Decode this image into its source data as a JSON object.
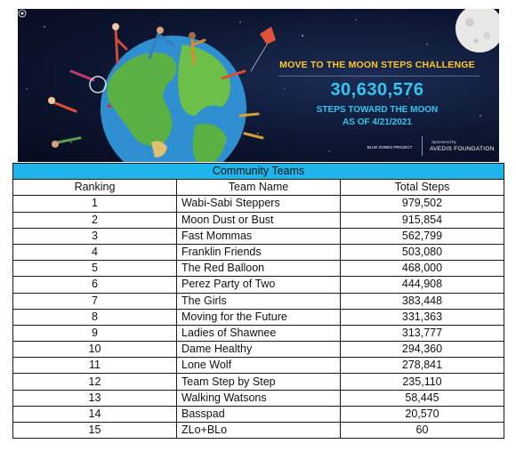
{
  "banner": {
    "challenge_title": "MOVE TO THE MOON STEPS CHALLENGE",
    "total_steps": "30,630,576",
    "subtitle_line1": "STEPS TOWARD THE MOON",
    "subtitle_line2": "AS OF 4/21/2021",
    "logo_left": "BLUE ZONES PROJECT",
    "sponsored_by": "Sponsored by",
    "logo_right": "AVEDIS FOUNDATION"
  },
  "table": {
    "caption": "Community Teams",
    "headers": {
      "ranking": "Ranking",
      "team_name": "Team Name",
      "total_steps": "Total Steps"
    },
    "rows": [
      {
        "rank": "1",
        "team": "Wabi-Sabi Steppers",
        "steps": "979,502"
      },
      {
        "rank": "2",
        "team": "Moon Dust or Bust",
        "steps": "915,854"
      },
      {
        "rank": "3",
        "team": "Fast Mommas",
        "steps": "562,799"
      },
      {
        "rank": "4",
        "team": "Franklin Friends",
        "steps": "503,080"
      },
      {
        "rank": "5",
        "team": "The Red Balloon",
        "steps": "468,000"
      },
      {
        "rank": "6",
        "team": "Perez Party of Two",
        "steps": "444,908"
      },
      {
        "rank": "7",
        "team": "The Girls",
        "steps": "383,448"
      },
      {
        "rank": "8",
        "team": "Moving for the Future",
        "steps": "331,363"
      },
      {
        "rank": "9",
        "team": "Ladies of Shawnee",
        "steps": "313,777"
      },
      {
        "rank": "10",
        "team": "Dame Healthy",
        "steps": "294,360"
      },
      {
        "rank": "11",
        "team": "Lone Wolf",
        "steps": "278,841"
      },
      {
        "rank": "12",
        "team": "Team Step by Step",
        "steps": "235,110"
      },
      {
        "rank": "13",
        "team": "Walking Watsons",
        "steps": "58,445"
      },
      {
        "rank": "14",
        "team": "Basspad",
        "steps": "20,570"
      },
      {
        "rank": "15",
        "team": "ZLo+BLo",
        "steps": "60"
      }
    ]
  },
  "colors": {
    "caption_bg": "#1fb4ea",
    "title_yellow": "#ffc928",
    "count_blue": "#33c7ef"
  }
}
